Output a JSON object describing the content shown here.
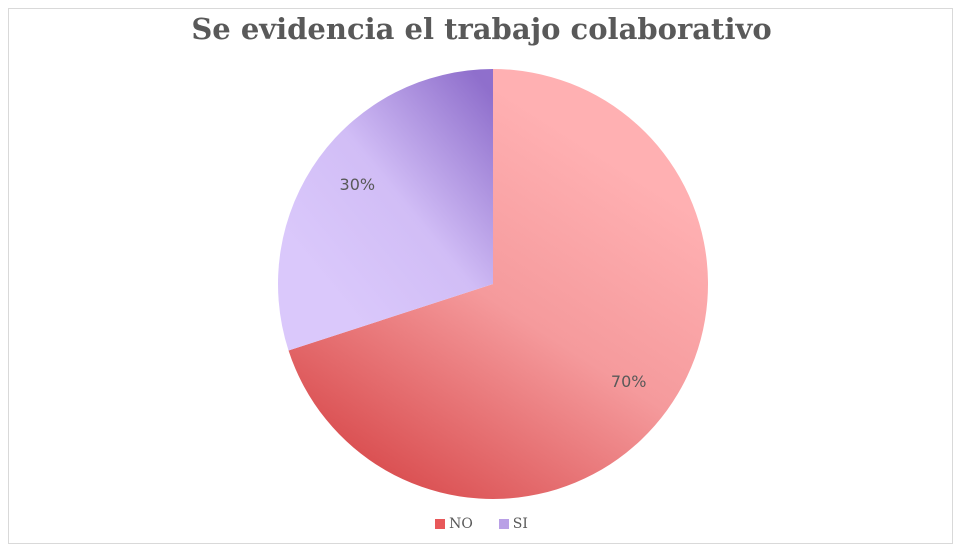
{
  "chart_data": {
    "type": "pie",
    "title": "Se evidencia el trabajo colaborativo",
    "categories": [
      "NO",
      "SI"
    ],
    "values": [
      70,
      30
    ],
    "data_labels": [
      "70%",
      "30%"
    ],
    "colors": [
      "#e8585a",
      "#b9a0e6"
    ],
    "legend_position": "bottom"
  }
}
